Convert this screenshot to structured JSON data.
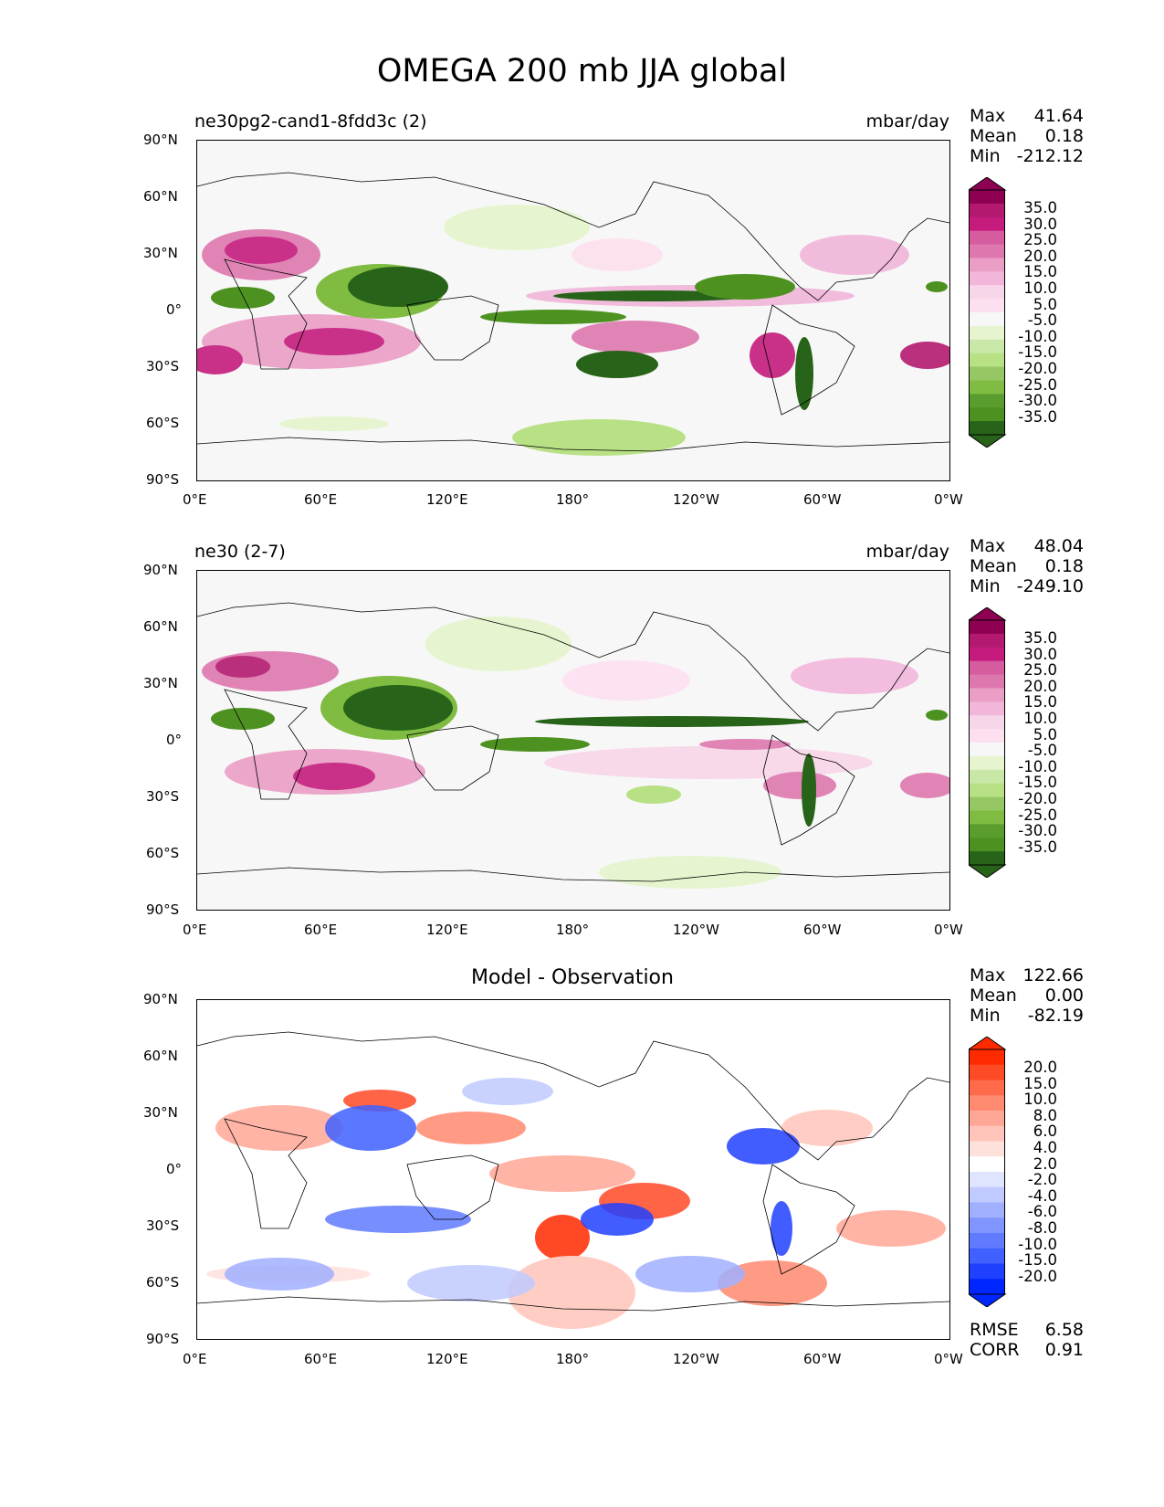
{
  "chart_data": {
    "type": "heatmap",
    "title": "OMEGA 200 mb JJA global",
    "panels": [
      {
        "title_left": "ne30pg2-cand1-8fdd3c (2)",
        "units": "mbar/day",
        "stats": [
          {
            "label": "Max",
            "value": "41.64"
          },
          {
            "label": "Mean",
            "value": "0.18"
          },
          {
            "label": "Min",
            "value": "-212.12"
          }
        ],
        "colorbar_levels": [
          "35.0",
          "30.0",
          "25.0",
          "20.0",
          "15.0",
          "10.0",
          "5.0",
          "-5.0",
          "-10.0",
          "-15.0",
          "-20.0",
          "-25.0",
          "-30.0",
          "-35.0"
        ],
        "colorbar_colors": [
          "#8e0152",
          "#b31a6f",
          "#c51b7d",
          "#d55c9f",
          "#de77ae",
          "#ea9ec6",
          "#f1b6da",
          "#f7d6e9",
          "#fde0ef",
          "#f7f7f7",
          "#e6f5d0",
          "#c9e8a8",
          "#b8e186",
          "#95c864",
          "#7fbc41",
          "#5a9d2e",
          "#4d9221",
          "#276419"
        ],
        "xticks": [
          "0°E",
          "60°E",
          "120°E",
          "180°",
          "120°W",
          "60°W",
          "0°W"
        ],
        "yticks": [
          "90°N",
          "60°N",
          "30°N",
          "0°",
          "30°S",
          "60°S",
          "90°S"
        ]
      },
      {
        "title_left": "ne30 (2-7)",
        "units": "mbar/day",
        "stats": [
          {
            "label": "Max",
            "value": "48.04"
          },
          {
            "label": "Mean",
            "value": "0.18"
          },
          {
            "label": "Min",
            "value": "-249.10"
          }
        ],
        "colorbar_levels": [
          "35.0",
          "30.0",
          "25.0",
          "20.0",
          "15.0",
          "10.0",
          "5.0",
          "-5.0",
          "-10.0",
          "-15.0",
          "-20.0",
          "-25.0",
          "-30.0",
          "-35.0"
        ],
        "colorbar_colors": [
          "#8e0152",
          "#b31a6f",
          "#c51b7d",
          "#d55c9f",
          "#de77ae",
          "#ea9ec6",
          "#f1b6da",
          "#f7d6e9",
          "#fde0ef",
          "#f7f7f7",
          "#e6f5d0",
          "#c9e8a8",
          "#b8e186",
          "#95c864",
          "#7fbc41",
          "#5a9d2e",
          "#4d9221",
          "#276419"
        ],
        "xticks": [
          "0°E",
          "60°E",
          "120°E",
          "180°",
          "120°W",
          "60°W",
          "0°W"
        ],
        "yticks": [
          "90°N",
          "60°N",
          "30°N",
          "0°",
          "30°S",
          "60°S",
          "90°S"
        ]
      },
      {
        "title_center": "Model - Observation",
        "stats": [
          {
            "label": "Max",
            "value": "122.66"
          },
          {
            "label": "Mean",
            "value": "0.00"
          },
          {
            "label": "Min",
            "value": "-82.19"
          }
        ],
        "extra_stats": [
          {
            "label": "RMSE",
            "value": "6.58"
          },
          {
            "label": "CORR",
            "value": "0.91"
          }
        ],
        "colorbar_levels": [
          "20.0",
          "15.0",
          "10.0",
          "8.0",
          "6.0",
          "4.0",
          "2.0",
          "-2.0",
          "-4.0",
          "-6.0",
          "-8.0",
          "-10.0",
          "-15.0",
          "-20.0"
        ],
        "colorbar_colors": [
          "#ff2a00",
          "#ff4a26",
          "#ff6a4b",
          "#ff8a70",
          "#ffa796",
          "#ffc4ba",
          "#ffe1dc",
          "#ffffff",
          "#dfe4ff",
          "#c0caff",
          "#a0b0ff",
          "#8095ff",
          "#607bff",
          "#4060ff",
          "#2040ff",
          "#0026ff"
        ],
        "xticks": [
          "0°E",
          "60°E",
          "120°E",
          "180°",
          "120°W",
          "60°W",
          "0°W"
        ],
        "yticks": [
          "90°N",
          "60°N",
          "30°N",
          "0°",
          "30°S",
          "60°S",
          "90°S"
        ]
      }
    ]
  }
}
